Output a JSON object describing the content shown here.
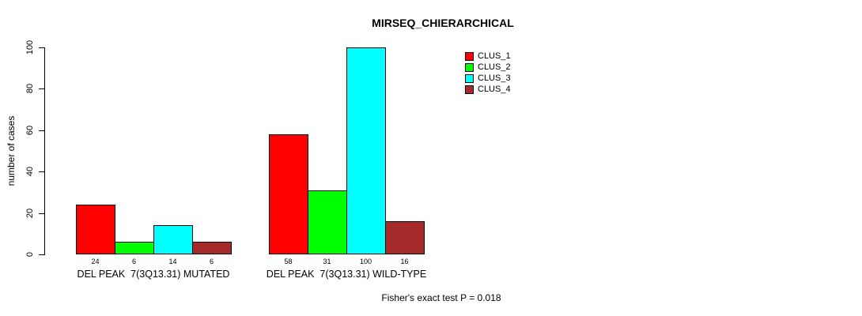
{
  "chart_data": {
    "type": "bar",
    "title": "MIRSEQ_CHIERARCHICAL",
    "ylabel": "number of cases",
    "ylim": [
      0,
      100
    ],
    "yticks": [
      0,
      20,
      40,
      60,
      80,
      100
    ],
    "grid": false,
    "legend_position": "top-right-inside",
    "bar_colors": [
      "#FF0000",
      "#00FF00",
      "#00FFFF",
      "#A52A2A"
    ],
    "legend": [
      {
        "label": "CLUS_1",
        "color": "#FF0000"
      },
      {
        "label": "CLUS_2",
        "color": "#00FF00"
      },
      {
        "label": "CLUS_3",
        "color": "#00FFFF"
      },
      {
        "label": "CLUS_4",
        "color": "#A52A2A"
      }
    ],
    "categories": [
      "DEL PEAK  7(3Q13.31) MUTATED",
      "DEL PEAK  7(3Q13.31) WILD-TYPE"
    ],
    "series": [
      {
        "name": "CLUS_1",
        "values": [
          24,
          58
        ]
      },
      {
        "name": "CLUS_2",
        "values": [
          6,
          31
        ]
      },
      {
        "name": "CLUS_3",
        "values": [
          14,
          100
        ]
      },
      {
        "name": "CLUS_4",
        "values": [
          6,
          16
        ]
      }
    ],
    "groups": [
      {
        "label": "DEL PEAK  7(3Q13.31) MUTATED",
        "values": [
          24,
          6,
          14,
          6
        ]
      },
      {
        "label": "DEL PEAK  7(3Q13.31) WILD-TYPE",
        "values": [
          58,
          31,
          100,
          16
        ]
      }
    ],
    "value_labels_shown": true,
    "footnote": "Fisher's exact test P = 0.018",
    "text_color": "#000000",
    "background_color": "#FFFFFF"
  }
}
